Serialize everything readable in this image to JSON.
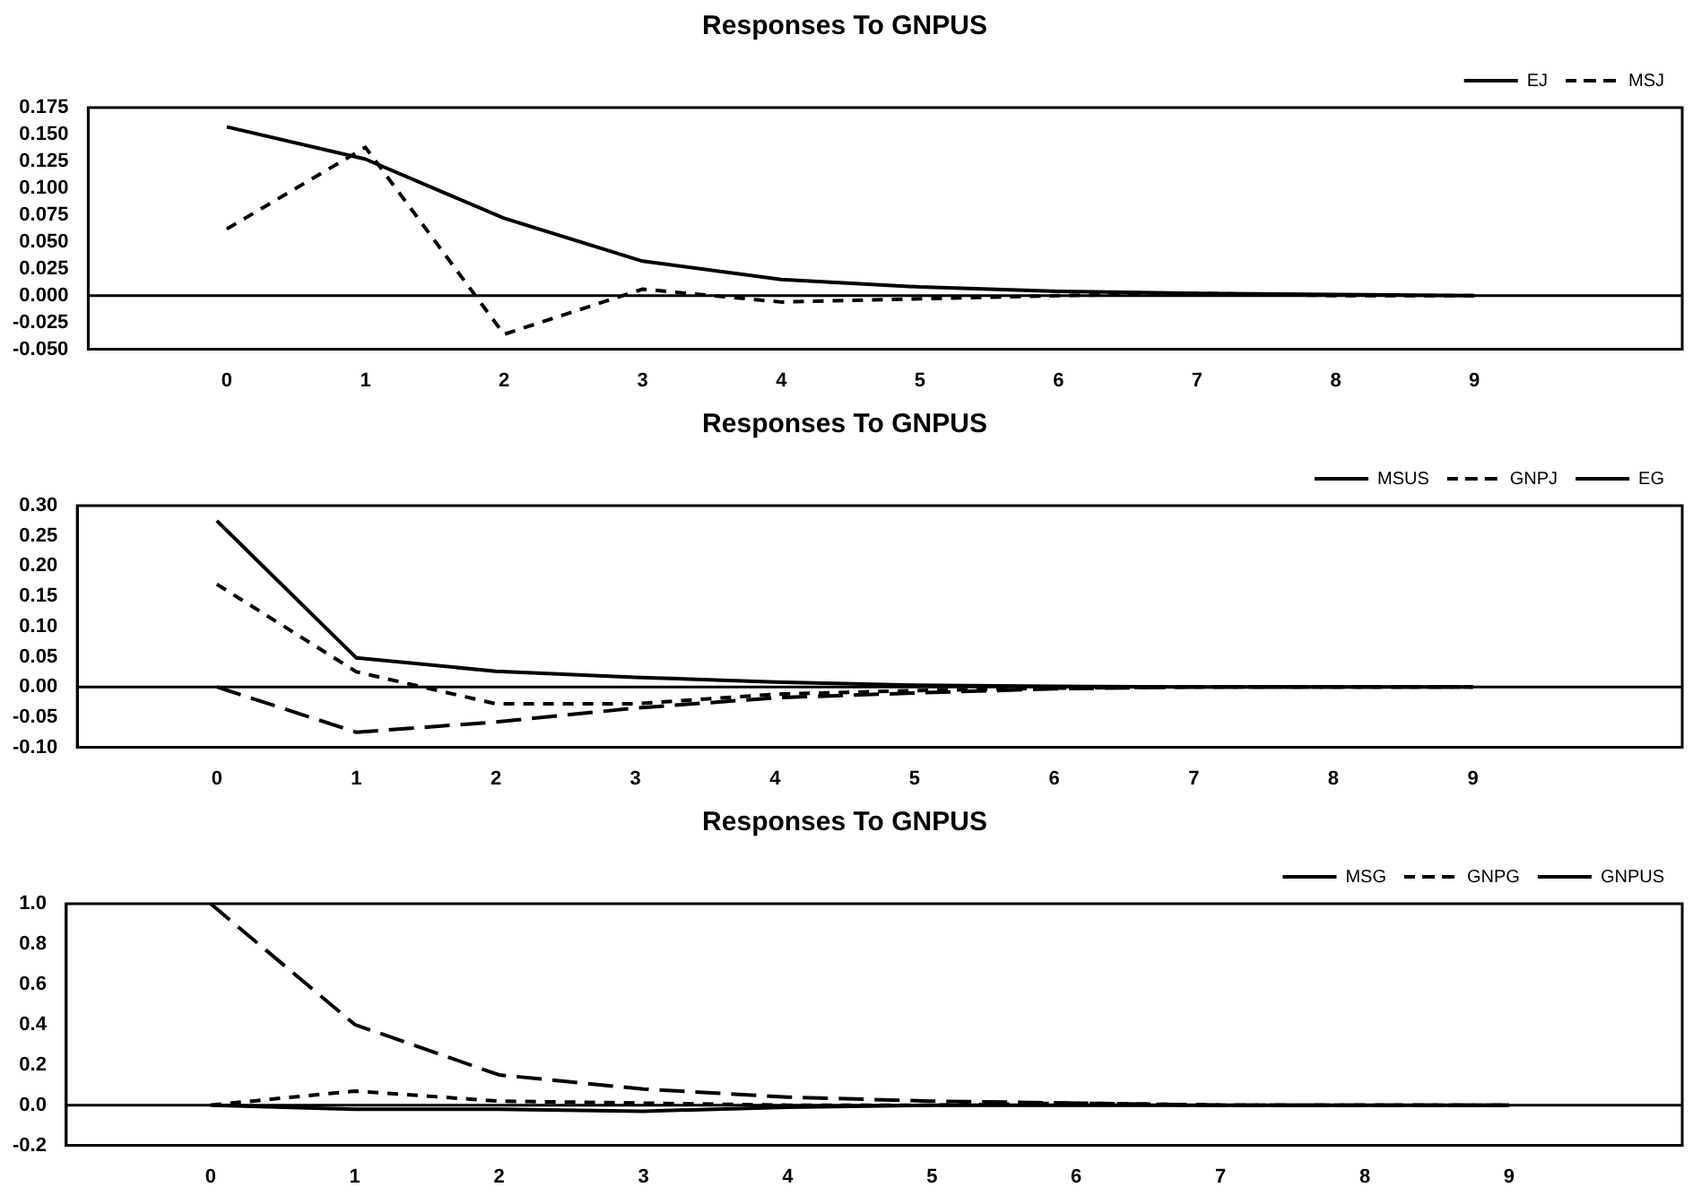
{
  "chart_data": [
    {
      "type": "line",
      "title": "Responses To GNPUS",
      "x": [
        0,
        1,
        2,
        3,
        4,
        5,
        6,
        7,
        8,
        9
      ],
      "xlim": [
        -1,
        10.5
      ],
      "xticks": [
        0,
        1,
        2,
        3,
        4,
        5,
        6,
        7,
        8,
        9
      ],
      "ylim": [
        -0.05,
        0.175
      ],
      "yticks": [
        {
          "value": -0.05,
          "label": "-0.050"
        },
        {
          "value": -0.025,
          "label": "-0.025"
        },
        {
          "value": 0,
          "label": "0.000"
        },
        {
          "value": 0.025,
          "label": "0.025"
        },
        {
          "value": 0.05,
          "label": "0.050"
        },
        {
          "value": 0.075,
          "label": "0.075"
        },
        {
          "value": 0.1,
          "label": "0.100"
        },
        {
          "value": 0.125,
          "label": "0.125"
        },
        {
          "value": 0.15,
          "label": "0.150"
        },
        {
          "value": 0.175,
          "label": "0.175"
        }
      ],
      "legend": "top right",
      "grid": false,
      "ref_lines": [
        {
          "axis": "y",
          "value": 0,
          "color": "#000000"
        }
      ],
      "series": [
        {
          "name": "EJ",
          "color": "#000000",
          "line_style": "solid",
          "values": [
            0.157,
            0.127,
            0.072,
            0.032,
            0.015,
            0.008,
            0.004,
            0.002,
            0.001,
            0.0
          ]
        },
        {
          "name": "MSJ",
          "color": "#000000",
          "line_style": "dashed",
          "values": [
            0.062,
            0.138,
            -0.036,
            0.006,
            -0.006,
            -0.003,
            0.0,
            0.002,
            0.0,
            0.0
          ]
        }
      ]
    },
    {
      "type": "line",
      "title": "Responses To GNPUS",
      "x": [
        0,
        1,
        2,
        3,
        4,
        5,
        6,
        7,
        8,
        9
      ],
      "xlim": [
        -1,
        10.5
      ],
      "xticks": [
        0,
        1,
        2,
        3,
        4,
        5,
        6,
        7,
        8,
        9
      ],
      "ylim": [
        -0.1,
        0.3
      ],
      "yticks": [
        {
          "value": -0.1,
          "label": "-0.10"
        },
        {
          "value": -0.05,
          "label": "-0.05"
        },
        {
          "value": 0,
          "label": "0.00"
        },
        {
          "value": 0.05,
          "label": "0.05"
        },
        {
          "value": 0.1,
          "label": "0.10"
        },
        {
          "value": 0.15,
          "label": "0.15"
        },
        {
          "value": 0.2,
          "label": "0.20"
        },
        {
          "value": 0.25,
          "label": "0.25"
        },
        {
          "value": 0.3,
          "label": "0.30"
        }
      ],
      "legend": "top right",
      "grid": false,
      "ref_lines": [
        {
          "axis": "y",
          "value": 0,
          "color": "#000000"
        }
      ],
      "series": [
        {
          "name": "MSUS",
          "color": "#000000",
          "line_style": "solid",
          "values": [
            0.275,
            0.048,
            0.026,
            0.016,
            0.008,
            0.003,
            0.001,
            0.0,
            0.0,
            0.0
          ]
        },
        {
          "name": "GNPJ",
          "color": "#000000",
          "line_style": "dashed",
          "values": [
            0.17,
            0.025,
            -0.028,
            -0.028,
            -0.012,
            -0.006,
            -0.002,
            0.0,
            0.0,
            0.0
          ]
        },
        {
          "name": "EG",
          "color": "#000000",
          "line_style": "dashed",
          "values": [
            0.0,
            -0.075,
            -0.058,
            -0.035,
            -0.018,
            -0.01,
            -0.003,
            0.0,
            0.0,
            0.0
          ]
        }
      ]
    },
    {
      "type": "line",
      "title": "Responses To GNPUS",
      "x": [
        0,
        1,
        2,
        3,
        4,
        5,
        6,
        7,
        8,
        9
      ],
      "xlim": [
        -1,
        10.2
      ],
      "xticks": [
        0,
        1,
        2,
        3,
        4,
        5,
        6,
        7,
        8,
        9
      ],
      "ylim": [
        -0.2,
        1.0
      ],
      "yticks": [
        {
          "value": -0.2,
          "label": "-0.2"
        },
        {
          "value": 0,
          "label": "0.0"
        },
        {
          "value": 0.2,
          "label": "0.2"
        },
        {
          "value": 0.4,
          "label": "0.4"
        },
        {
          "value": 0.6,
          "label": "0.6"
        },
        {
          "value": 0.8,
          "label": "0.8"
        },
        {
          "value": 1.0,
          "label": "1.0"
        }
      ],
      "legend": "top right",
      "grid": false,
      "ref_lines": [
        {
          "axis": "y",
          "value": 0,
          "color": "#000000"
        }
      ],
      "series": [
        {
          "name": "MSG",
          "color": "#000000",
          "line_style": "solid",
          "values": [
            0.0,
            -0.02,
            -0.02,
            -0.03,
            -0.01,
            0.0,
            0.0,
            0.0,
            0.0,
            0.0
          ]
        },
        {
          "name": "GNPG",
          "color": "#000000",
          "line_style": "dashed",
          "values": [
            0.0,
            0.07,
            0.02,
            0.01,
            0.0,
            0.0,
            0.01,
            0.0,
            0.0,
            0.0
          ]
        },
        {
          "name": "GNPUS",
          "color": "#000000",
          "line_style": "dashed",
          "values": [
            1.0,
            0.4,
            0.15,
            0.08,
            0.04,
            0.02,
            0.01,
            0.0,
            0.0,
            0.0
          ]
        }
      ]
    }
  ]
}
